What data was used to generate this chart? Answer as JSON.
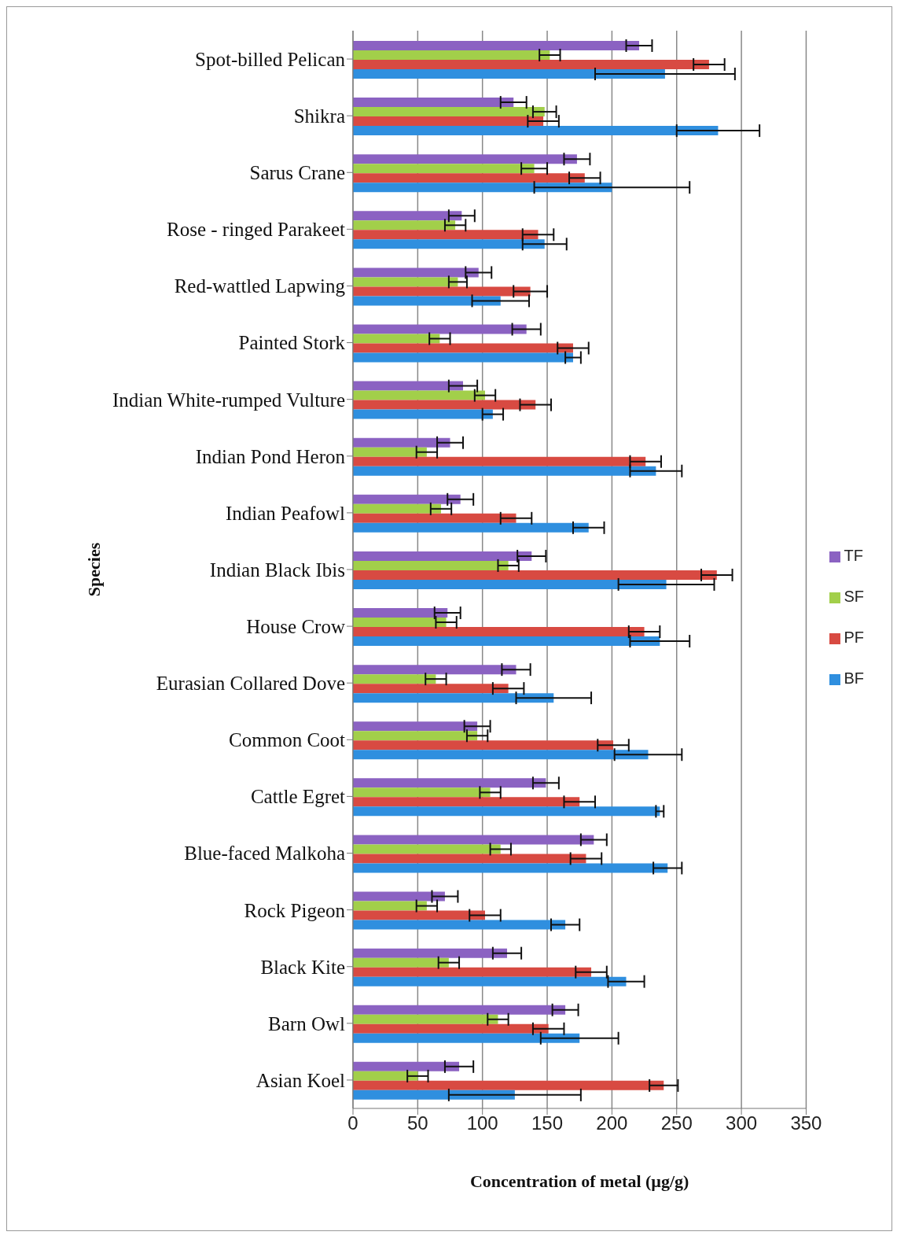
{
  "chart_data": {
    "type": "bar",
    "orientation": "horizontal",
    "xlabel": "Concentration of metal (µg/g)",
    "ylabel": "Species",
    "categories": [
      "Spot-billed Pelican",
      "Shikra",
      "Sarus Crane",
      "Rose - ringed Parakeet",
      "Red-wattled Lapwing",
      "Painted Stork",
      "Indian White-rumped Vulture",
      "Indian Pond Heron",
      "Indian Peafowl",
      "Indian Black Ibis",
      "House Crow",
      "Eurasian Collared Dove",
      "Common Coot",
      "Cattle Egret",
      "Blue-faced  Malkoha",
      "Rock Pigeon",
      "Black Kite",
      "Barn Owl",
      "Asian Koel"
    ],
    "xlim": [
      0,
      350
    ],
    "xticks": [
      0,
      50,
      100,
      150,
      200,
      250,
      300,
      350
    ],
    "grid": "x",
    "legend": "right",
    "series": [
      {
        "name": "TF",
        "color": "#8b62c2",
        "values": [
          221,
          124,
          173,
          84,
          97,
          134,
          85,
          75,
          83,
          138,
          73,
          126,
          96,
          149,
          186,
          71,
          119,
          164,
          82
        ],
        "errors": [
          10,
          10,
          10,
          10,
          10,
          11,
          11,
          10,
          10,
          11,
          10,
          11,
          10,
          10,
          10,
          10,
          11,
          10,
          11
        ]
      },
      {
        "name": "SF",
        "color": "#a2cf4a",
        "values": [
          152,
          148,
          140,
          79,
          81,
          67,
          102,
          57,
          68,
          120,
          72,
          64,
          96,
          106,
          114,
          57,
          74,
          112,
          50
        ],
        "errors": [
          8,
          9,
          10,
          8,
          7,
          8,
          8,
          8,
          8,
          8,
          8,
          8,
          8,
          8,
          8,
          8,
          8,
          8,
          8
        ]
      },
      {
        "name": "PF",
        "color": "#d84a42",
        "values": [
          275,
          147,
          179,
          143,
          137,
          170,
          141,
          226,
          126,
          281,
          225,
          120,
          201,
          175,
          180,
          102,
          184,
          151,
          240
        ],
        "errors": [
          12,
          12,
          12,
          12,
          13,
          12,
          12,
          12,
          12,
          12,
          12,
          12,
          12,
          12,
          12,
          12,
          12,
          12,
          11
        ]
      },
      {
        "name": "BF",
        "color": "#2f8fdf",
        "values": [
          241,
          282,
          200,
          148,
          114,
          170,
          108,
          234,
          182,
          242,
          237,
          155,
          228,
          237,
          243,
          164,
          211,
          175,
          125
        ],
        "errors": [
          54,
          32,
          60,
          17,
          22,
          6,
          8,
          20,
          12,
          37,
          23,
          29,
          26,
          3,
          11,
          11,
          14,
          30,
          51
        ]
      }
    ]
  }
}
